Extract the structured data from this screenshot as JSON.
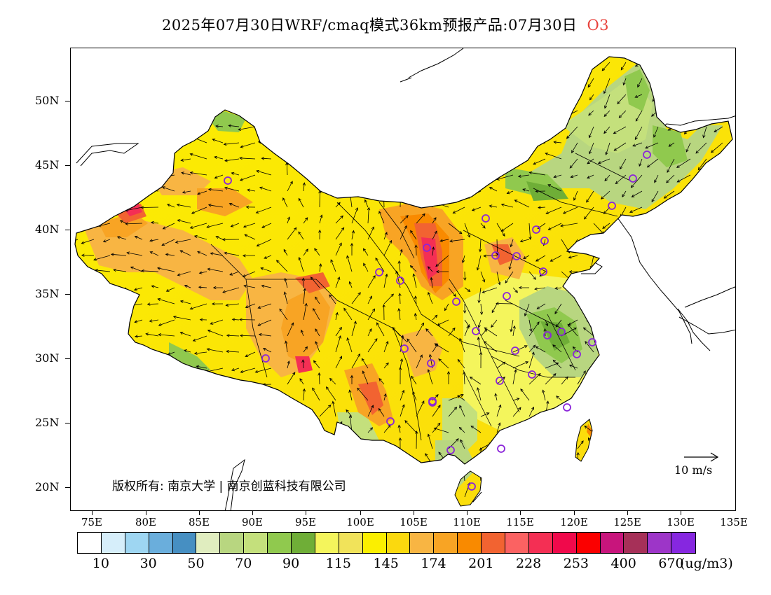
{
  "title": {
    "main": "2025年07月30日WRF/cmaq模式36km预报产品:07月30日",
    "species": "O3"
  },
  "map": {
    "lat_labels": [
      "50N",
      "45N",
      "40N",
      "35N",
      "30N",
      "25N",
      "20N"
    ],
    "lon_labels": [
      "75E",
      "80E",
      "85E",
      "90E",
      "95E",
      "100E",
      "105E",
      "110E",
      "115E",
      "120E",
      "125E",
      "130E",
      "135E"
    ],
    "copyright": "版权所有: 南京大学 | 南京创蓝科技有限公司",
    "wind_reference": "10 m/s"
  },
  "legend": {
    "colors": [
      "#ffffff",
      "#d6eefa",
      "#9ed6f2",
      "#6aaedc",
      "#468fc2",
      "#e0edbf",
      "#b8d680",
      "#c4e07c",
      "#90c94e",
      "#6fae37",
      "#f4f55c",
      "#f1e35a",
      "#fbef00",
      "#fbd90e",
      "#f8b543",
      "#f8a424",
      "#f98a00",
      "#f26331",
      "#fb6262",
      "#f42f54",
      "#f0094b",
      "#fb0000",
      "#c8157c",
      "#a63058",
      "#9d35c8",
      "#8627e0"
    ],
    "labels": [
      "10",
      "30",
      "50",
      "70",
      "90",
      "115",
      "145",
      "174",
      "201",
      "228",
      "253",
      "400",
      "670"
    ],
    "unit": "(ug/m3)"
  }
}
